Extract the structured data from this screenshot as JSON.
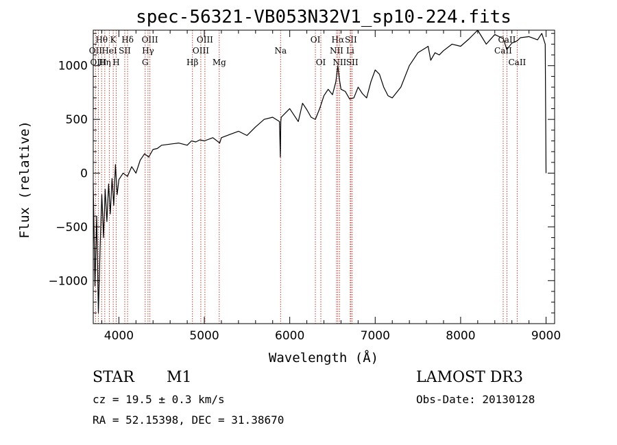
{
  "chart_data": {
    "type": "line",
    "title": "spec-56321-VB053N32V1_sp10-224.fits",
    "xlabel": "Wavelength (Å)",
    "ylabel": "Flux (relative)",
    "xlim": [
      3700,
      9100
    ],
    "ylim": [
      -1400,
      1330
    ],
    "x_ticks": [
      4000,
      5000,
      6000,
      7000,
      8000,
      9000
    ],
    "y_ticks": [
      -1000,
      -500,
      0,
      500,
      1000
    ],
    "series": [
      {
        "name": "spectrum",
        "x": [
          3700,
          3720,
          3740,
          3760,
          3780,
          3800,
          3820,
          3840,
          3860,
          3880,
          3900,
          3920,
          3940,
          3960,
          3980,
          4000,
          4050,
          4100,
          4150,
          4200,
          4250,
          4300,
          4350,
          4400,
          4450,
          4500,
          4600,
          4700,
          4800,
          4850,
          4900,
          4950,
          5000,
          5100,
          5180,
          5200,
          5300,
          5400,
          5500,
          5600,
          5700,
          5800,
          5880,
          5890,
          5895,
          5900,
          5950,
          6000,
          6050,
          6100,
          6150,
          6200,
          6250,
          6300,
          6350,
          6400,
          6450,
          6500,
          6540,
          6563,
          6580,
          6600,
          6650,
          6700,
          6750,
          6800,
          6850,
          6900,
          6950,
          7000,
          7050,
          7100,
          7150,
          7200,
          7300,
          7400,
          7500,
          7600,
          7620,
          7650,
          7700,
          7750,
          7800,
          7900,
          8000,
          8100,
          8200,
          8300,
          8400,
          8500,
          8540,
          8600,
          8660,
          8700,
          8800,
          8900,
          8950,
          8990,
          9000
        ],
        "y": [
          -100,
          -1050,
          -400,
          -1300,
          -700,
          -200,
          -600,
          -150,
          -450,
          -100,
          -380,
          -50,
          -300,
          80,
          -200,
          -60,
          0,
          -30,
          60,
          0,
          120,
          180,
          150,
          220,
          230,
          260,
          270,
          280,
          260,
          300,
          290,
          310,
          300,
          330,
          280,
          330,
          360,
          390,
          350,
          430,
          500,
          520,
          480,
          150,
          480,
          520,
          560,
          600,
          540,
          480,
          650,
          590,
          520,
          500,
          600,
          720,
          780,
          730,
          850,
          1000,
          880,
          780,
          760,
          690,
          700,
          800,
          740,
          700,
          850,
          960,
          920,
          800,
          720,
          700,
          800,
          1000,
          1120,
          1170,
          1180,
          1050,
          1120,
          1100,
          1140,
          1200,
          1180,
          1250,
          1330,
          1200,
          1290,
          1250,
          1150,
          1210,
          1230,
          1260,
          1270,
          1240,
          1300,
          1200,
          0
        ]
      }
    ],
    "spectral_lines": [
      {
        "label": "Hθ",
        "wavelength": 3798,
        "row": 1
      },
      {
        "label": "OII",
        "wavelength": 3727,
        "row": 2
      },
      {
        "label": "OIII",
        "wavelength": 3760,
        "row": 3
      },
      {
        "label": "K",
        "wavelength": 3934,
        "row": 1
      },
      {
        "label": "HeI",
        "wavelength": 3889,
        "row": 2
      },
      {
        "label": "Hη",
        "wavelength": 3835,
        "row": 3
      },
      {
        "label": "SII",
        "wavelength": 4069,
        "row": 2
      },
      {
        "label": "H",
        "wavelength": 3969,
        "row": 3
      },
      {
        "label": "Hδ",
        "wavelength": 4102,
        "row": 1
      },
      {
        "label": "OIII",
        "wavelength": 4363,
        "row": 1
      },
      {
        "label": "Hγ",
        "wavelength": 4341,
        "row": 2
      },
      {
        "label": "G",
        "wavelength": 4308,
        "row": 3
      },
      {
        "label": "OIII",
        "wavelength": 5007,
        "row": 1
      },
      {
        "label": "OIII",
        "wavelength": 4959,
        "row": 2
      },
      {
        "label": "Hβ",
        "wavelength": 4861,
        "row": 3
      },
      {
        "label": "Mg",
        "wavelength": 5175,
        "row": 3
      },
      {
        "label": "Na",
        "wavelength": 5893,
        "row": 2
      },
      {
        "label": "OI",
        "wavelength": 6300,
        "row": 1
      },
      {
        "label": "OI",
        "wavelength": 6364,
        "row": 3
      },
      {
        "label": "Hα",
        "wavelength": 6563,
        "row": 1
      },
      {
        "label": "SII",
        "wavelength": 6716,
        "row": 1
      },
      {
        "label": "NII",
        "wavelength": 6548,
        "row": 2
      },
      {
        "label": "Li",
        "wavelength": 6708,
        "row": 2
      },
      {
        "label": "NII",
        "wavelength": 6583,
        "row": 3
      },
      {
        "label": "SII",
        "wavelength": 6731,
        "row": 3
      },
      {
        "label": "CaII",
        "wavelength": 8542,
        "row": 1
      },
      {
        "label": "CaII",
        "wavelength": 8498,
        "row": 2
      },
      {
        "label": "CaII",
        "wavelength": 8662,
        "row": 3
      }
    ],
    "colors": {
      "spectrum": "#000000",
      "lines": "#c0392b",
      "axes": "#000000"
    }
  },
  "info": {
    "classification": "STAR",
    "subclass": "M1",
    "survey": "LAMOST DR3",
    "redshift": "cz =  19.5 ± 0.3 km/s",
    "obs_date": "Obs-Date: 20130128",
    "coords": "RA =  52.15398, DEC =  31.38670"
  }
}
